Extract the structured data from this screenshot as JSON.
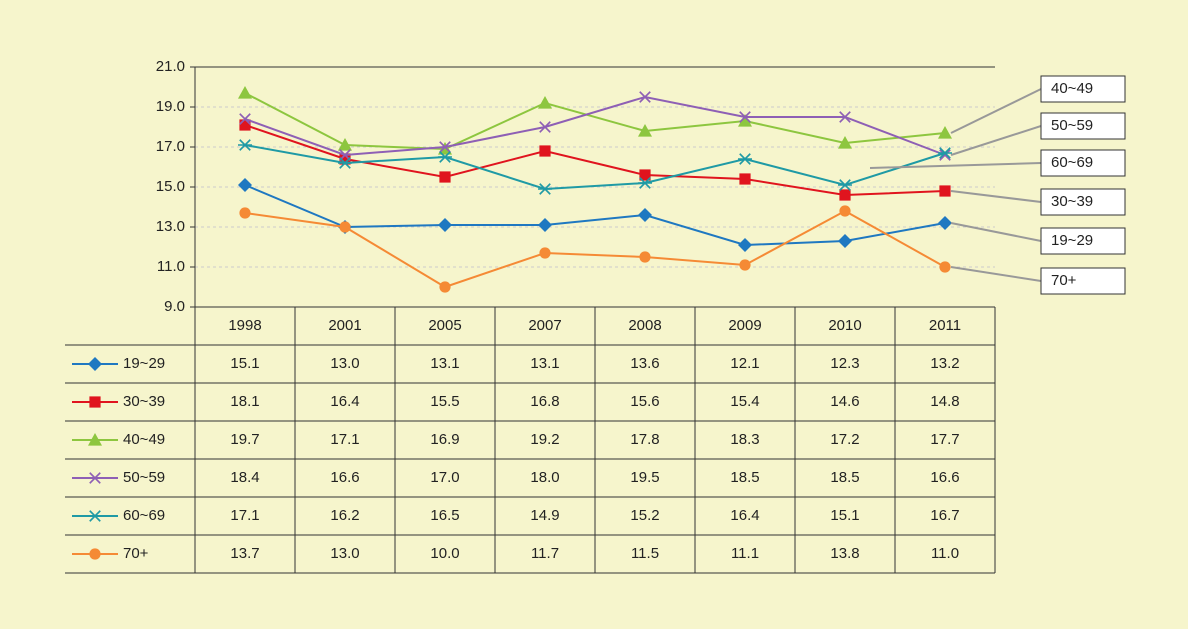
{
  "chart_data": {
    "type": "line",
    "categories": [
      "1998",
      "2001",
      "2005",
      "2007",
      "2008",
      "2009",
      "2010",
      "2011"
    ],
    "ylim": [
      9,
      21
    ],
    "yticks": [
      {
        "value": 9,
        "label": "9.0"
      },
      {
        "value": 11,
        "label": "11.0"
      },
      {
        "value": 13,
        "label": "13.0"
      },
      {
        "value": 15,
        "label": "15.0"
      },
      {
        "value": 17,
        "label": "17.0"
      },
      {
        "value": 19,
        "label": "19.0"
      },
      {
        "value": 21,
        "label": "21.0"
      }
    ],
    "grid": true,
    "series": [
      {
        "name": "19~29",
        "color": "#1f78c1",
        "marker": "diamond",
        "values": [
          15.1,
          13.0,
          13.1,
          13.1,
          13.6,
          12.1,
          12.3,
          13.2
        ],
        "value_labels": [
          "15.1",
          "13.0",
          "13.1",
          "13.1",
          "13.6",
          "12.1",
          "12.3",
          "13.2"
        ]
      },
      {
        "name": "30~39",
        "color": "#e0141e",
        "marker": "square",
        "values": [
          18.1,
          16.4,
          15.5,
          16.8,
          15.6,
          15.4,
          14.6,
          14.8
        ],
        "value_labels": [
          "18.1",
          "16.4",
          "15.5",
          "16.8",
          "15.6",
          "15.4",
          "14.6",
          "14.8"
        ]
      },
      {
        "name": "40~49",
        "color": "#8dc63f",
        "marker": "triangle",
        "values": [
          19.7,
          17.1,
          16.9,
          19.2,
          17.8,
          18.3,
          17.2,
          17.7
        ],
        "value_labels": [
          "19.7",
          "17.1",
          "16.9",
          "19.2",
          "17.8",
          "18.3",
          "17.2",
          "17.7"
        ]
      },
      {
        "name": "50~59",
        "color": "#8e5fb5",
        "marker": "x",
        "values": [
          18.4,
          16.6,
          17.0,
          18.0,
          19.5,
          18.5,
          18.5,
          16.6
        ],
        "value_labels": [
          "18.4",
          "16.6",
          "17.0",
          "18.0",
          "19.5",
          "18.5",
          "18.5",
          "16.6"
        ]
      },
      {
        "name": "60~69",
        "color": "#1f9aa5",
        "marker": "asterisk",
        "values": [
          17.1,
          16.2,
          16.5,
          14.9,
          15.2,
          16.4,
          15.1,
          16.7
        ],
        "value_labels": [
          "17.1",
          "16.2",
          "16.5",
          "14.9",
          "15.2",
          "16.4",
          "15.1",
          "16.7"
        ]
      },
      {
        "name": "70+",
        "color": "#f58a35",
        "marker": "circle",
        "values": [
          13.7,
          13.0,
          10.0,
          11.7,
          11.5,
          11.1,
          13.8,
          11.0
        ],
        "value_labels": [
          "13.7",
          "13.0",
          "10.0",
          "11.7",
          "11.5",
          "11.1",
          "13.8",
          "11.0"
        ]
      }
    ]
  }
}
